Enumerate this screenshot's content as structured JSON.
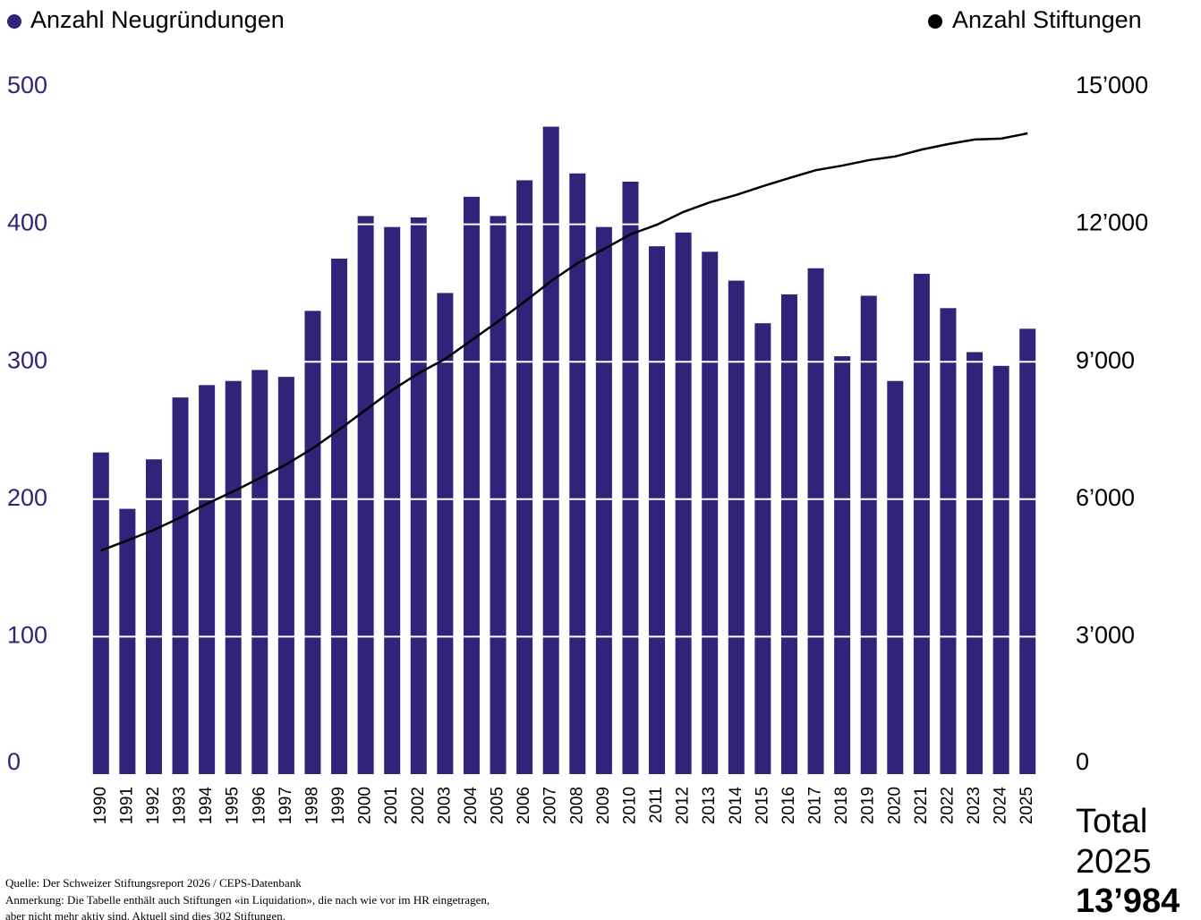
{
  "chart_data": {
    "type": "bar_line",
    "categories": [
      "1990",
      "1991",
      "1992",
      "1993",
      "1994",
      "1995",
      "1996",
      "1997",
      "1998",
      "1999",
      "2000",
      "2001",
      "2002",
      "2003",
      "2004",
      "2005",
      "2006",
      "2007",
      "2008",
      "2009",
      "2010",
      "2011",
      "2012",
      "2013",
      "2014",
      "2015",
      "2016",
      "2017",
      "2018",
      "2019",
      "2020",
      "2021",
      "2022",
      "2023",
      "2024",
      "2025"
    ],
    "series": [
      {
        "name": "Anzahl Neugründungen",
        "color": "#31237a",
        "type": "bar",
        "axis": "y",
        "values": [
          234,
          193,
          229,
          274,
          283,
          286,
          294,
          289,
          337,
          375,
          406,
          398,
          405,
          350,
          420,
          406,
          432,
          471,
          437,
          398,
          431,
          384,
          394,
          380,
          359,
          328,
          349,
          368,
          304,
          348,
          286,
          364,
          339,
          307,
          297,
          324
        ]
      },
      {
        "name": "Anzahl Stiftungen",
        "color": "#000000",
        "type": "line",
        "axis": "y2",
        "values": [
          4880,
          5100,
          5330,
          5600,
          5900,
          6170,
          6460,
          6760,
          7110,
          7520,
          7950,
          8380,
          8750,
          9060,
          9470,
          9880,
          10310,
          10760,
          11150,
          11460,
          11780,
          11990,
          12270,
          12480,
          12640,
          12830,
          13010,
          13180,
          13280,
          13400,
          13480,
          13630,
          13750,
          13850,
          13870,
          13984
        ]
      }
    ],
    "ylim": [
      0,
      500
    ],
    "yticks": [
      0,
      100,
      200,
      300,
      400,
      500
    ],
    "y2lim": [
      0,
      15000
    ],
    "y2ticks": [
      0,
      {
        "value": 3000,
        "label": "3’000"
      },
      {
        "value": 6000,
        "label": "6’000"
      },
      {
        "value": 9000,
        "label": "9’000"
      },
      {
        "value": 12000,
        "label": "12’000"
      },
      {
        "value": 15000,
        "label": "15’000"
      }
    ],
    "grid": true,
    "annotation": [
      "Total",
      "2025",
      "13’984"
    ],
    "source": "Quelle: Der Schweizer Stiftungsreport 2026 / CEPS-Datenbank",
    "note": [
      "Anmerkung: Die Tabelle enthält auch Stiftungen «in Liquidation», die nach wie vor im HR eingetragen,",
      "aber nicht mehr aktiv sind. Aktuell sind dies 302 Stiftungen."
    ]
  }
}
